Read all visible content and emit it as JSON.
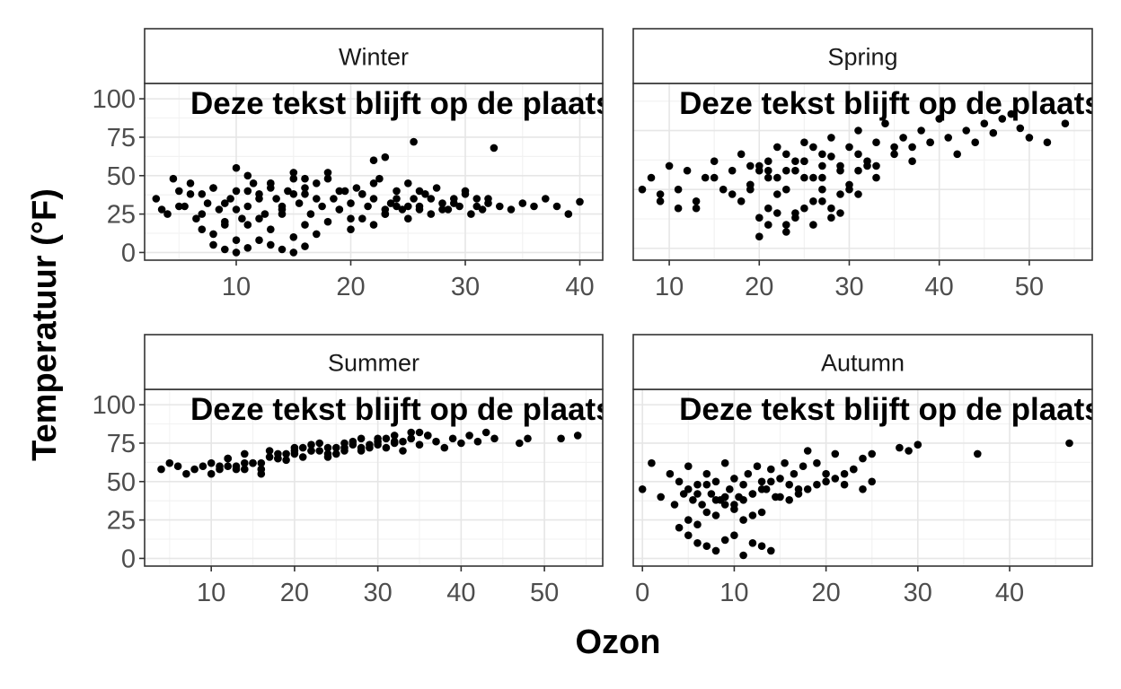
{
  "chart_data": {
    "type": "scatter",
    "xlabel": "Ozon",
    "ylabel": "Temperatuur (°F)",
    "annotation": "Deze tekst blijft op de plaats",
    "grid": true,
    "facets": [
      {
        "title": "Winter",
        "xlim": [
          2,
          42
        ],
        "ylim": [
          -5,
          110
        ],
        "xticks": [
          10,
          20,
          30,
          40
        ],
        "yticks": [
          0,
          25,
          50,
          75,
          100
        ],
        "x": [
          3,
          3.5,
          4,
          4.5,
          5,
          5.5,
          6,
          6.5,
          7,
          7.5,
          8,
          8.5,
          9,
          9.5,
          10,
          10.5,
          11,
          11.5,
          12,
          12.5,
          13,
          13.5,
          14,
          14.5,
          15,
          15.5,
          16,
          16.5,
          17,
          17.5,
          18,
          18.5,
          19,
          19.5,
          20,
          20.5,
          21,
          21.5,
          22,
          22.5,
          23,
          23.5,
          24,
          24.5,
          25,
          25.5,
          26,
          26.5,
          27,
          27.5,
          28,
          28.5,
          29,
          29.5,
          30,
          30.5,
          31,
          31.5,
          32,
          33,
          34,
          35,
          36,
          37,
          38,
          39,
          40,
          5,
          6,
          7,
          8,
          9,
          10,
          11,
          12,
          13,
          14,
          15,
          16,
          17,
          18,
          19,
          20,
          21,
          22,
          23,
          24,
          25,
          26,
          27,
          28,
          29,
          30,
          31,
          32,
          7,
          8,
          9,
          10,
          11,
          12,
          13,
          14,
          15,
          16,
          17,
          18,
          19,
          20,
          21,
          22,
          23,
          24,
          25,
          26,
          8,
          9,
          10,
          11,
          12,
          13,
          14,
          15,
          16,
          10,
          11,
          13,
          15,
          16,
          22,
          23,
          25.5,
          32.5
        ],
        "y": [
          35,
          28,
          25,
          48,
          40,
          30,
          45,
          22,
          38,
          32,
          42,
          28,
          18,
          35,
          40,
          22,
          30,
          45,
          38,
          25,
          42,
          35,
          28,
          40,
          48,
          32,
          38,
          25,
          45,
          30,
          52,
          35,
          28,
          40,
          22,
          42,
          38,
          30,
          35,
          48,
          25,
          32,
          40,
          28,
          45,
          35,
          30,
          38,
          25,
          42,
          32,
          28,
          35,
          30,
          40,
          25,
          35,
          28,
          32,
          30,
          28,
          32,
          30,
          35,
          30,
          25,
          33,
          30,
          38,
          25,
          42,
          32,
          28,
          40,
          35,
          45,
          30,
          38,
          42,
          35,
          48,
          40,
          32,
          38,
          45,
          28,
          35,
          30,
          40,
          35,
          28,
          32,
          38,
          30,
          35,
          15,
          12,
          20,
          8,
          18,
          22,
          15,
          25,
          10,
          18,
          12,
          20,
          28,
          15,
          22,
          18,
          25,
          30,
          22,
          28,
          5,
          2,
          0,
          3,
          8,
          5,
          2,
          0,
          4,
          55,
          50,
          45,
          52,
          48,
          60,
          62,
          72,
          68
        ]
      },
      {
        "title": "Spring",
        "xlim": [
          6,
          57
        ],
        "ylim": [
          20,
          95
        ],
        "xticks": [
          10,
          20,
          30,
          40,
          50
        ],
        "yticks": [
          25,
          50,
          75,
          100
        ],
        "x": [
          7,
          8,
          9,
          10,
          11,
          12,
          13,
          14,
          15,
          16,
          17,
          18,
          19,
          20,
          21,
          22,
          23,
          24,
          25,
          26,
          27,
          28,
          29,
          30,
          31,
          32,
          33,
          34,
          35,
          36,
          37,
          38,
          39,
          40,
          41,
          42,
          43,
          44,
          45,
          46,
          47,
          48,
          49,
          50,
          52,
          54,
          9,
          11,
          13,
          15,
          17,
          19,
          21,
          23,
          25,
          27,
          29,
          31,
          33,
          35,
          37,
          39,
          18,
          19,
          20,
          21,
          22,
          23,
          24,
          25,
          26,
          27,
          28,
          29,
          30,
          31,
          32,
          33,
          19,
          20,
          21,
          22,
          23,
          24,
          25,
          26,
          27,
          28,
          20,
          21,
          22,
          23,
          24,
          25,
          26,
          27,
          28,
          29,
          30,
          31
        ],
        "y": [
          50,
          55,
          48,
          60,
          42,
          58,
          45,
          55,
          62,
          50,
          58,
          65,
          52,
          60,
          55,
          68,
          58,
          62,
          70,
          55,
          65,
          72,
          60,
          68,
          75,
          62,
          70,
          78,
          65,
          72,
          68,
          75,
          70,
          80,
          72,
          65,
          75,
          70,
          78,
          74,
          80,
          82,
          76,
          72,
          70,
          78,
          45,
          50,
          42,
          55,
          48,
          52,
          58,
          50,
          62,
          55,
          58,
          65,
          60,
          68,
          62,
          70,
          45,
          50,
          38,
          42,
          48,
          35,
          40,
          55,
          45,
          50,
          42,
          48,
          52,
          58,
          60,
          55,
          60,
          58,
          62,
          55,
          65,
          58,
          62,
          68,
          60,
          64,
          30,
          35,
          40,
          32,
          38,
          42,
          35,
          45,
          38,
          40,
          50,
          48
        ]
      },
      {
        "title": "Summer",
        "xlim": [
          2,
          57
        ],
        "ylim": [
          -5,
          110
        ],
        "xticks": [
          10,
          20,
          30,
          40,
          50
        ],
        "yticks": [
          0,
          25,
          50,
          75,
          100
        ],
        "x": [
          4,
          5,
          6,
          7,
          8,
          9,
          10,
          11,
          12,
          13,
          14,
          15,
          16,
          17,
          18,
          19,
          20,
          21,
          22,
          23,
          24,
          25,
          26,
          27,
          28,
          29,
          30,
          31,
          32,
          33,
          34,
          35,
          36,
          37,
          38,
          39,
          40,
          41,
          42,
          43,
          44,
          47,
          48,
          52,
          54,
          10,
          12,
          14,
          16,
          18,
          20,
          22,
          24,
          26,
          28,
          30,
          32,
          34,
          36,
          12,
          14,
          16,
          18,
          20,
          22,
          24,
          26,
          28,
          30,
          32,
          34,
          11,
          13,
          15,
          17,
          19,
          21,
          23,
          25,
          27,
          29,
          31,
          33,
          35
        ],
        "y": [
          58,
          62,
          60,
          55,
          58,
          60,
          62,
          58,
          65,
          60,
          68,
          62,
          58,
          70,
          65,
          68,
          72,
          66,
          70,
          75,
          68,
          72,
          70,
          76,
          72,
          74,
          78,
          72,
          75,
          70,
          78,
          74,
          80,
          76,
          72,
          78,
          75,
          80,
          76,
          82,
          78,
          75,
          78,
          78,
          80,
          55,
          60,
          58,
          62,
          65,
          68,
          70,
          72,
          75,
          70,
          74,
          76,
          78,
          80,
          65,
          62,
          55,
          68,
          70,
          74,
          66,
          72,
          78,
          76,
          80,
          82,
          60,
          58,
          62,
          66,
          64,
          72,
          70,
          68,
          74,
          72,
          78,
          76,
          82
        ]
      },
      {
        "title": "Autumn",
        "xlim": [
          -1,
          49
        ],
        "ylim": [
          -5,
          110
        ],
        "xticks": [
          0,
          10,
          20,
          30,
          40
        ],
        "yticks": [
          0,
          25,
          50,
          75,
          100
        ],
        "x": [
          0,
          1,
          2,
          3,
          3.5,
          4,
          4.5,
          5,
          5.5,
          6,
          6.5,
          7,
          7.5,
          8,
          8.5,
          9,
          9.5,
          10,
          10.5,
          11,
          11.5,
          12,
          12.5,
          13,
          13.5,
          14,
          14.5,
          15,
          15.5,
          16,
          16.5,
          17,
          17.5,
          18,
          19,
          20,
          21,
          22,
          23,
          24,
          25,
          28,
          29,
          30,
          36.5,
          46.5,
          4,
          5,
          6,
          7,
          8,
          9,
          10,
          11,
          12,
          13,
          14,
          5,
          6,
          7,
          8,
          9,
          10,
          11,
          12,
          13,
          5,
          6,
          7,
          8,
          9,
          10,
          11,
          12,
          13,
          14,
          15,
          16,
          17,
          18,
          19,
          20,
          21,
          22,
          23,
          24,
          25
        ],
        "y": [
          45,
          62,
          40,
          55,
          35,
          50,
          42,
          60,
          38,
          48,
          35,
          55,
          42,
          50,
          38,
          62,
          45,
          52,
          40,
          48,
          55,
          42,
          60,
          50,
          45,
          58,
          40,
          52,
          62,
          48,
          55,
          45,
          60,
          70,
          62,
          55,
          68,
          48,
          58,
          65,
          68,
          72,
          70,
          74,
          68,
          75,
          20,
          15,
          10,
          8,
          5,
          12,
          15,
          2,
          10,
          8,
          5,
          25,
          22,
          30,
          28,
          35,
          32,
          25,
          28,
          30,
          45,
          42,
          48,
          38,
          40,
          35,
          38,
          42,
          45,
          50,
          40,
          38,
          42,
          45,
          48,
          50,
          52,
          55,
          58,
          45,
          50
        ]
      }
    ]
  }
}
